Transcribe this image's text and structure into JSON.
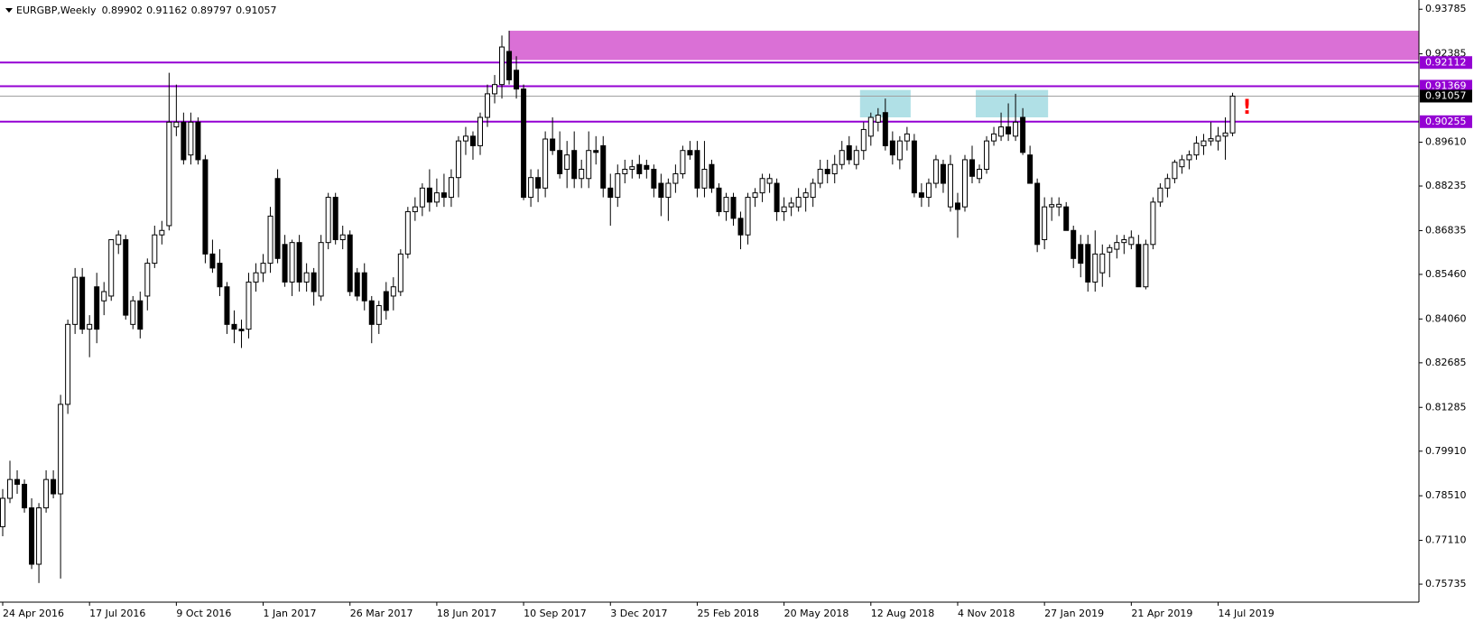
{
  "chart_data": {
    "type": "candlestick",
    "title": "EURGBP,Weekly",
    "categories": [
      "24 Apr 2016",
      null,
      null,
      null,
      null,
      null,
      null,
      null,
      null,
      null,
      null,
      null,
      "17 Jul 2016",
      null,
      null,
      null,
      null,
      null,
      null,
      null,
      null,
      null,
      null,
      null,
      "9 Oct 2016",
      null,
      null,
      null,
      null,
      null,
      null,
      null,
      null,
      null,
      null,
      null,
      "1 Jan 2017",
      null,
      null,
      null,
      null,
      null,
      null,
      null,
      null,
      null,
      null,
      null,
      "26 Mar 2017",
      null,
      null,
      null,
      null,
      null,
      null,
      null,
      null,
      null,
      null,
      null,
      "18 Jun 2017",
      null,
      null,
      null,
      null,
      null,
      null,
      null,
      null,
      null,
      null,
      null,
      "10 Sep 2017",
      null,
      null,
      null,
      null,
      null,
      null,
      null,
      null,
      null,
      null,
      null,
      "3 Dec 2017",
      null,
      null,
      null,
      null,
      null,
      null,
      null,
      null,
      null,
      null,
      null,
      "25 Feb 2018",
      null,
      null,
      null,
      null,
      null,
      null,
      null,
      null,
      null,
      null,
      null,
      "20 May 2018",
      null,
      null,
      null,
      null,
      null,
      null,
      null,
      null,
      null,
      null,
      null,
      "12 Aug 2018",
      null,
      null,
      null,
      null,
      null,
      null,
      null,
      null,
      null,
      null,
      null,
      "4 Nov 2018",
      null,
      null,
      null,
      null,
      null,
      null,
      null,
      null,
      null,
      null,
      null,
      "27 Jan 2019",
      null,
      null,
      null,
      null,
      null,
      null,
      null,
      null,
      null,
      null,
      null,
      "21 Apr 2019",
      null,
      null,
      null,
      null,
      null,
      null,
      null,
      null,
      null,
      null,
      null,
      "14 Jul 2019",
      null,
      null
    ],
    "open": [
      0.7754,
      0.7843,
      0.7902,
      0.7887,
      0.7813,
      0.7636,
      0.7813,
      0.7902,
      0.7857,
      0.8138,
      0.8389,
      0.8537,
      0.8374,
      0.8507,
      0.8463,
      0.8478,
      0.864,
      0.8655,
      0.8389,
      0.8463,
      0.8478,
      0.8581,
      0.867,
      0.8699,
      0.9009,
      0.9024,
      0.8921,
      0.9024,
      0.8906,
      0.861,
      0.8581,
      0.8507,
      0.8389,
      0.8374,
      0.8374,
      0.8522,
      0.8551,
      0.8581,
      0.8847,
      0.864,
      0.8522,
      0.8646,
      0.8522,
      0.8551,
      0.8478,
      0.8646,
      0.8788,
      0.8655,
      0.867,
      0.8551,
      0.8551,
      0.8463,
      0.8389,
      0.8492,
      0.8478,
      0.8492,
      0.861,
      0.8743,
      0.8758,
      0.8817,
      0.8773,
      0.8802,
      0.8788,
      0.885,
      0.8965,
      0.898,
      0.895,
      0.9039,
      0.9113,
      0.9142,
      0.9246,
      0.9187,
      0.9128,
      0.8788,
      0.885,
      0.8817,
      0.8971,
      0.8935,
      0.8876,
      0.8935,
      0.8847,
      0.8847,
      0.8935,
      0.895,
      0.8817,
      0.8788,
      0.8862,
      0.8876,
      0.8891,
      0.8888,
      0.8876,
      0.8832,
      0.8788,
      0.8832,
      0.8862,
      0.8935,
      0.8935,
      0.8817,
      0.8891,
      0.8817,
      0.8743,
      0.8788,
      0.8722,
      0.867,
      0.8788,
      0.8802,
      0.8832,
      0.8832,
      0.8743,
      0.8758,
      0.8758,
      0.8788,
      0.8788,
      0.8832,
      0.8876,
      0.8862,
      0.8891,
      0.895,
      0.8891,
      0.8935,
      0.898,
      0.9024,
      0.9054,
      0.8965,
      0.8906,
      0.8965,
      0.8965,
      0.8802,
      0.8788,
      0.8832,
      0.8891,
      0.8758,
      0.877,
      0.8758,
      0.8906,
      0.8847,
      0.8876,
      0.8965,
      0.898,
      0.9009,
      0.898,
      0.9039,
      0.8921,
      0.8832,
      0.8655,
      0.8758,
      0.8758,
      0.8758,
      0.8684,
      0.864,
      0.864,
      0.8522,
      0.8551,
      0.8616,
      0.8625,
      0.8646,
      0.864,
      0.864,
      0.8507,
      0.864,
      0.8773,
      0.8817,
      0.8847,
      0.8884,
      0.8906,
      0.8921,
      0.895,
      0.8965,
      0.8965,
      0.898,
      0.89902
    ],
    "high": [
      0.7872,
      0.7961,
      0.7931,
      0.7902,
      0.7843,
      0.7828,
      0.7931,
      0.7931,
      0.8168,
      0.8404,
      0.8566,
      0.8566,
      0.8418,
      0.8551,
      0.8522,
      0.8655,
      0.8684,
      0.867,
      0.8478,
      0.8492,
      0.8596,
      0.8699,
      0.8714,
      0.9179,
      0.9142,
      0.9054,
      0.9054,
      0.9039,
      0.8921,
      0.8655,
      0.8625,
      0.8522,
      0.8433,
      0.8404,
      0.8551,
      0.8581,
      0.861,
      0.8758,
      0.8876,
      0.867,
      0.8655,
      0.867,
      0.8581,
      0.8566,
      0.867,
      0.8802,
      0.8802,
      0.8699,
      0.8684,
      0.8566,
      0.8581,
      0.8478,
      0.8463,
      0.8522,
      0.8537,
      0.8625,
      0.8758,
      0.8788,
      0.8832,
      0.8876,
      0.8847,
      0.8862,
      0.8876,
      0.898,
      0.9009,
      0.8995,
      0.9054,
      0.9142,
      0.9172,
      0.9296,
      0.9311,
      0.9231,
      0.9142,
      0.8876,
      0.8876,
      0.8995,
      0.9039,
      0.8995,
      0.8965,
      0.8995,
      0.8906,
      0.8995,
      0.898,
      0.898,
      0.8862,
      0.8891,
      0.8906,
      0.8906,
      0.8921,
      0.8906,
      0.8891,
      0.8862,
      0.8847,
      0.8891,
      0.895,
      0.8965,
      0.8965,
      0.8965,
      0.8906,
      0.8832,
      0.8802,
      0.8802,
      0.8743,
      0.8802,
      0.8817,
      0.8862,
      0.8862,
      0.8847,
      0.8788,
      0.8788,
      0.8817,
      0.8817,
      0.8847,
      0.8906,
      0.8906,
      0.8921,
      0.8965,
      0.898,
      0.895,
      0.9024,
      0.9054,
      0.9068,
      0.9098,
      0.8995,
      0.898,
      0.9009,
      0.8987,
      0.8832,
      0.8847,
      0.8921,
      0.8906,
      0.8921,
      0.8802,
      0.8921,
      0.895,
      0.8891,
      0.898,
      0.9009,
      0.9054,
      0.9083,
      0.9113,
      0.9068,
      0.895,
      0.8847,
      0.8788,
      0.8788,
      0.8788,
      0.8773,
      0.8699,
      0.867,
      0.867,
      0.8684,
      0.864,
      0.864,
      0.867,
      0.867,
      0.8684,
      0.867,
      0.8655,
      0.8788,
      0.8832,
      0.8862,
      0.8906,
      0.8921,
      0.8935,
      0.898,
      0.8987,
      0.9024,
      0.9009,
      0.9039,
      0.91162
    ],
    "low": [
      0.7724,
      0.7828,
      0.7857,
      0.7798,
      0.7621,
      0.7577,
      0.7798,
      0.7843,
      0.7591,
      0.8108,
      0.8359,
      0.8359,
      0.8286,
      0.833,
      0.8418,
      0.8463,
      0.861,
      0.8404,
      0.8374,
      0.8345,
      0.8433,
      0.8566,
      0.864,
      0.8684,
      0.898,
      0.8891,
      0.8891,
      0.8891,
      0.8581,
      0.8551,
      0.8478,
      0.8359,
      0.833,
      0.8315,
      0.8345,
      0.8492,
      0.8522,
      0.8551,
      0.8581,
      0.8507,
      0.8478,
      0.8492,
      0.8492,
      0.8448,
      0.8463,
      0.8625,
      0.864,
      0.8625,
      0.8478,
      0.8463,
      0.8433,
      0.833,
      0.8359,
      0.8404,
      0.8433,
      0.8478,
      0.8596,
      0.8714,
      0.8729,
      0.8743,
      0.8758,
      0.8758,
      0.8758,
      0.8788,
      0.8921,
      0.8906,
      0.8921,
      0.9009,
      0.9083,
      0.9098,
      0.9142,
      0.9098,
      0.8779,
      0.8758,
      0.8773,
      0.8788,
      0.8921,
      0.8847,
      0.8817,
      0.8817,
      0.8817,
      0.8817,
      0.8891,
      0.8788,
      0.8699,
      0.8758,
      0.8832,
      0.8847,
      0.8847,
      0.8847,
      0.8788,
      0.8729,
      0.8714,
      0.8802,
      0.8847,
      0.8906,
      0.8788,
      0.8788,
      0.8802,
      0.8729,
      0.8714,
      0.8699,
      0.8625,
      0.864,
      0.8758,
      0.8773,
      0.8802,
      0.8714,
      0.8714,
      0.8729,
      0.8743,
      0.8743,
      0.8758,
      0.8817,
      0.8832,
      0.8832,
      0.8876,
      0.8891,
      0.8876,
      0.8906,
      0.895,
      0.8995,
      0.8935,
      0.8891,
      0.8876,
      0.8935,
      0.8788,
      0.8758,
      0.8758,
      0.8817,
      0.8802,
      0.8743,
      0.8661,
      0.8743,
      0.8832,
      0.8832,
      0.8862,
      0.895,
      0.8965,
      0.8965,
      0.8965,
      0.8921,
      0.8832,
      0.8616,
      0.8625,
      0.8714,
      0.8729,
      0.8684,
      0.8566,
      0.8537,
      0.8492,
      0.8492,
      0.8507,
      0.8537,
      0.8596,
      0.861,
      0.8625,
      0.8507,
      0.8499,
      0.8625,
      0.8758,
      0.8788,
      0.8832,
      0.8862,
      0.8876,
      0.8906,
      0.8921,
      0.895,
      0.8935,
      0.8906,
      0.89797
    ],
    "close": [
      0.7843,
      0.7902,
      0.7887,
      0.7813,
      0.7636,
      0.7813,
      0.7902,
      0.7857,
      0.8138,
      0.8389,
      0.8537,
      0.8374,
      0.8389,
      0.8374,
      0.8492,
      0.8655,
      0.867,
      0.8418,
      0.8463,
      0.8374,
      0.8581,
      0.867,
      0.8684,
      0.9024,
      0.9024,
      0.8906,
      0.9024,
      0.8906,
      0.861,
      0.8566,
      0.8507,
      0.8389,
      0.8374,
      0.8369,
      0.8522,
      0.8551,
      0.8581,
      0.8729,
      0.8596,
      0.8522,
      0.8646,
      0.8522,
      0.8551,
      0.8492,
      0.8646,
      0.8788,
      0.8655,
      0.867,
      0.8492,
      0.8478,
      0.8463,
      0.8389,
      0.8448,
      0.8433,
      0.8507,
      0.861,
      0.8743,
      0.8758,
      0.8817,
      0.8773,
      0.8802,
      0.8788,
      0.885,
      0.8965,
      0.898,
      0.895,
      0.9039,
      0.9113,
      0.9142,
      0.926,
      0.9157,
      0.9128,
      0.8788,
      0.885,
      0.8817,
      0.8971,
      0.8935,
      0.8862,
      0.8921,
      0.8847,
      0.8876,
      0.8935,
      0.8929,
      0.8817,
      0.8788,
      0.8862,
      0.8876,
      0.8884,
      0.8862,
      0.8876,
      0.8817,
      0.8788,
      0.8832,
      0.8862,
      0.8935,
      0.8921,
      0.8817,
      0.8876,
      0.8817,
      0.8743,
      0.8788,
      0.8722,
      0.867,
      0.8788,
      0.8802,
      0.8847,
      0.8847,
      0.8743,
      0.8758,
      0.877,
      0.8788,
      0.8802,
      0.8832,
      0.8876,
      0.8862,
      0.8891,
      0.8935,
      0.8906,
      0.8935,
      0.9001,
      0.9039,
      0.9046,
      0.895,
      0.8921,
      0.8965,
      0.8987,
      0.8802,
      0.8788,
      0.8832,
      0.8906,
      0.8832,
      0.8891,
      0.875,
      0.8906,
      0.8854,
      0.8876,
      0.8965,
      0.8987,
      0.9009,
      0.8987,
      0.9024,
      0.8929,
      0.8832,
      0.864,
      0.8758,
      0.8765,
      0.8766,
      0.8684,
      0.8596,
      0.8581,
      0.8522,
      0.861,
      0.861,
      0.863,
      0.8646,
      0.8655,
      0.8662,
      0.8507,
      0.864,
      0.8773,
      0.8817,
      0.8847,
      0.8898,
      0.8906,
      0.8921,
      0.8958,
      0.8965,
      0.8972,
      0.898,
      0.899,
      0.91057
    ],
    "up_color": "#ffffff",
    "down_color": "#000000",
    "ylim": [
      0.7517,
      0.9399
    ],
    "yticks": [
      0.93785,
      0.92385,
      {
        "value": 0.8961,
        "label": "0.89610"
      },
      0.88235,
      0.86835,
      {
        "value": 0.8546,
        "label": "0.85460"
      },
      {
        "value": 0.8406,
        "label": "0.84060"
      },
      0.82685,
      0.81285,
      {
        "value": 0.7991,
        "label": "0.79910"
      },
      {
        "value": 0.7851,
        "label": "0.78510"
      },
      {
        "value": 0.7711,
        "label": "0.77110"
      },
      0.75735
    ],
    "levels": [
      {
        "value": 0.92112,
        "color": "#9400d3"
      },
      {
        "value": 0.91369,
        "color": "#9400d3"
      },
      {
        "value": 0.90255,
        "color": "#9400d3"
      }
    ],
    "zones": [
      {
        "start": 70,
        "high": 0.9311,
        "low": 0.9219,
        "color": "#da70d6"
      }
    ],
    "boxes": [
      {
        "start": 119,
        "end": 125,
        "high": 0.9125,
        "low": 0.9039,
        "color": "#b0e0e6"
      },
      {
        "start": 135,
        "end": 144,
        "high": 0.9125,
        "low": 0.9039,
        "color": "#b0e0e6"
      }
    ],
    "annotations": [
      {
        "text": "!",
        "x": 172,
        "y": 0.9068,
        "color": "#ff0000"
      }
    ]
  }
}
